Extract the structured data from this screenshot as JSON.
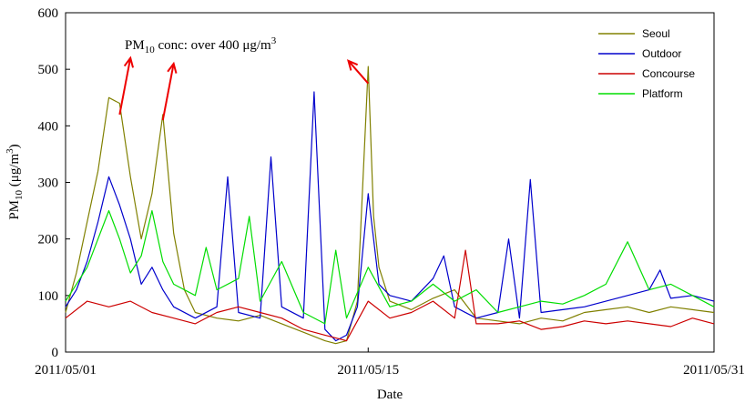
{
  "chart_data": {
    "type": "line",
    "title": "",
    "xlabel": "Date",
    "ylabel": "PM10 (μg/m3)",
    "ylabel_parts": {
      "main": "PM",
      "sub": "10",
      "unit_open": " (μg/m",
      "unit_sup": "3",
      "unit_close": ")"
    },
    "ylim": [
      0,
      600
    ],
    "yticks": [
      0,
      100,
      200,
      300,
      400,
      500,
      600
    ],
    "xlim": [
      "2011-05-01",
      "2011-05-31"
    ],
    "xticks": [
      {
        "value": "2011-05-01",
        "label": "2011/05/01"
      },
      {
        "value": "2011-05-15",
        "label": "2011/05/15"
      },
      {
        "value": "2011-05-31",
        "label": "2011/05/31"
      }
    ],
    "grid": false,
    "legend_position": "top-right",
    "series": [
      {
        "name": "Seoul",
        "color": "#808000",
        "points": [
          [
            "2011-05-01",
            70
          ],
          [
            "2011-05-01T12:00",
            140
          ],
          [
            "2011-05-02",
            230
          ],
          [
            "2011-05-02T12:00",
            320
          ],
          [
            "2011-05-03",
            450
          ],
          [
            "2011-05-03T12:00",
            440
          ],
          [
            "2011-05-04",
            310
          ],
          [
            "2011-05-04T12:00",
            200
          ],
          [
            "2011-05-05",
            280
          ],
          [
            "2011-05-05T12:00",
            420
          ],
          [
            "2011-05-06",
            210
          ],
          [
            "2011-05-06T12:00",
            110
          ],
          [
            "2011-05-07",
            70
          ],
          [
            "2011-05-08",
            60
          ],
          [
            "2011-05-09",
            55
          ],
          [
            "2011-05-10",
            65
          ],
          [
            "2011-05-11",
            50
          ],
          [
            "2011-05-12",
            35
          ],
          [
            "2011-05-13",
            20
          ],
          [
            "2011-05-13T12:00",
            15
          ],
          [
            "2011-05-14",
            20
          ],
          [
            "2011-05-14T12:00",
            90
          ],
          [
            "2011-05-15",
            505
          ],
          [
            "2011-05-15T06:00",
            240
          ],
          [
            "2011-05-15T12:00",
            150
          ],
          [
            "2011-05-16",
            90
          ],
          [
            "2011-05-17",
            75
          ],
          [
            "2011-05-18",
            95
          ],
          [
            "2011-05-19",
            110
          ],
          [
            "2011-05-20",
            60
          ],
          [
            "2011-05-21",
            55
          ],
          [
            "2011-05-22",
            50
          ],
          [
            "2011-05-23",
            60
          ],
          [
            "2011-05-24",
            55
          ],
          [
            "2011-05-25",
            70
          ],
          [
            "2011-05-26",
            75
          ],
          [
            "2011-05-27",
            80
          ],
          [
            "2011-05-28",
            70
          ],
          [
            "2011-05-29",
            80
          ],
          [
            "2011-05-30",
            75
          ],
          [
            "2011-05-31",
            70
          ]
        ]
      },
      {
        "name": "Outdoor",
        "color": "#0000CC",
        "points": [
          [
            "2011-05-01",
            80
          ],
          [
            "2011-05-01T12:00",
            110
          ],
          [
            "2011-05-02",
            160
          ],
          [
            "2011-05-02T12:00",
            230
          ],
          [
            "2011-05-03",
            310
          ],
          [
            "2011-05-03T12:00",
            260
          ],
          [
            "2011-05-04",
            200
          ],
          [
            "2011-05-04T12:00",
            120
          ],
          [
            "2011-05-05",
            150
          ],
          [
            "2011-05-05T12:00",
            110
          ],
          [
            "2011-05-06",
            80
          ],
          [
            "2011-05-07",
            60
          ],
          [
            "2011-05-08",
            80
          ],
          [
            "2011-05-08T12:00",
            310
          ],
          [
            "2011-05-09",
            70
          ],
          [
            "2011-05-10",
            60
          ],
          [
            "2011-05-10T12:00",
            345
          ],
          [
            "2011-05-11",
            80
          ],
          [
            "2011-05-12",
            60
          ],
          [
            "2011-05-12T12:00",
            460
          ],
          [
            "2011-05-13",
            40
          ],
          [
            "2011-05-13T12:00",
            20
          ],
          [
            "2011-05-14",
            30
          ],
          [
            "2011-05-14T12:00",
            80
          ],
          [
            "2011-05-15",
            280
          ],
          [
            "2011-05-15T12:00",
            120
          ],
          [
            "2011-05-16",
            100
          ],
          [
            "2011-05-17",
            90
          ],
          [
            "2011-05-18",
            130
          ],
          [
            "2011-05-18T12:00",
            170
          ],
          [
            "2011-05-19",
            80
          ],
          [
            "2011-05-20",
            60
          ],
          [
            "2011-05-21",
            70
          ],
          [
            "2011-05-21T12:00",
            200
          ],
          [
            "2011-05-22",
            60
          ],
          [
            "2011-05-22T12:00",
            305
          ],
          [
            "2011-05-23",
            70
          ],
          [
            "2011-05-24",
            75
          ],
          [
            "2011-05-25",
            80
          ],
          [
            "2011-05-26",
            90
          ],
          [
            "2011-05-27",
            100
          ],
          [
            "2011-05-28",
            110
          ],
          [
            "2011-05-28T12:00",
            145
          ],
          [
            "2011-05-29",
            95
          ],
          [
            "2011-05-30",
            100
          ],
          [
            "2011-05-31",
            90
          ]
        ]
      },
      {
        "name": "Concourse",
        "color": "#CC0000",
        "points": [
          [
            "2011-05-01",
            60
          ],
          [
            "2011-05-02",
            90
          ],
          [
            "2011-05-03",
            80
          ],
          [
            "2011-05-04",
            90
          ],
          [
            "2011-05-05",
            70
          ],
          [
            "2011-05-06",
            60
          ],
          [
            "2011-05-07",
            50
          ],
          [
            "2011-05-08",
            70
          ],
          [
            "2011-05-09",
            80
          ],
          [
            "2011-05-10",
            70
          ],
          [
            "2011-05-11",
            60
          ],
          [
            "2011-05-12",
            40
          ],
          [
            "2011-05-13",
            30
          ],
          [
            "2011-05-14",
            20
          ],
          [
            "2011-05-15",
            90
          ],
          [
            "2011-05-16",
            60
          ],
          [
            "2011-05-17",
            70
          ],
          [
            "2011-05-18",
            90
          ],
          [
            "2011-05-19",
            60
          ],
          [
            "2011-05-19T12:00",
            180
          ],
          [
            "2011-05-20",
            50
          ],
          [
            "2011-05-21",
            50
          ],
          [
            "2011-05-22",
            55
          ],
          [
            "2011-05-23",
            40
          ],
          [
            "2011-05-24",
            45
          ],
          [
            "2011-05-25",
            55
          ],
          [
            "2011-05-26",
            50
          ],
          [
            "2011-05-27",
            55
          ],
          [
            "2011-05-28",
            50
          ],
          [
            "2011-05-29",
            45
          ],
          [
            "2011-05-30",
            60
          ],
          [
            "2011-05-31",
            50
          ]
        ]
      },
      {
        "name": "Platform",
        "color": "#00DD00",
        "points": [
          [
            "2011-05-01",
            90
          ],
          [
            "2011-05-01T12:00",
            120
          ],
          [
            "2011-05-02",
            150
          ],
          [
            "2011-05-02T12:00",
            200
          ],
          [
            "2011-05-03",
            250
          ],
          [
            "2011-05-03T12:00",
            200
          ],
          [
            "2011-05-04",
            140
          ],
          [
            "2011-05-04T12:00",
            170
          ],
          [
            "2011-05-05",
            250
          ],
          [
            "2011-05-05T12:00",
            160
          ],
          [
            "2011-05-06",
            120
          ],
          [
            "2011-05-07",
            100
          ],
          [
            "2011-05-07T12:00",
            185
          ],
          [
            "2011-05-08",
            110
          ],
          [
            "2011-05-09",
            130
          ],
          [
            "2011-05-09T12:00",
            240
          ],
          [
            "2011-05-10",
            90
          ],
          [
            "2011-05-11",
            160
          ],
          [
            "2011-05-12",
            70
          ],
          [
            "2011-05-13",
            50
          ],
          [
            "2011-05-13T12:00",
            180
          ],
          [
            "2011-05-14",
            60
          ],
          [
            "2011-05-15",
            150
          ],
          [
            "2011-05-16",
            80
          ],
          [
            "2011-05-17",
            90
          ],
          [
            "2011-05-18",
            120
          ],
          [
            "2011-05-19",
            90
          ],
          [
            "2011-05-20",
            110
          ],
          [
            "2011-05-21",
            70
          ],
          [
            "2011-05-22",
            80
          ],
          [
            "2011-05-23",
            90
          ],
          [
            "2011-05-24",
            85
          ],
          [
            "2011-05-25",
            100
          ],
          [
            "2011-05-26",
            120
          ],
          [
            "2011-05-27",
            195
          ],
          [
            "2011-05-28",
            110
          ],
          [
            "2011-05-29",
            120
          ],
          [
            "2011-05-30",
            100
          ],
          [
            "2011-05-31",
            80
          ]
        ]
      }
    ],
    "annotation": {
      "prefix": "PM",
      "sub": "10",
      "middle": " conc: over 400 μg/m",
      "sup": "3",
      "color": "#EE0000"
    }
  }
}
